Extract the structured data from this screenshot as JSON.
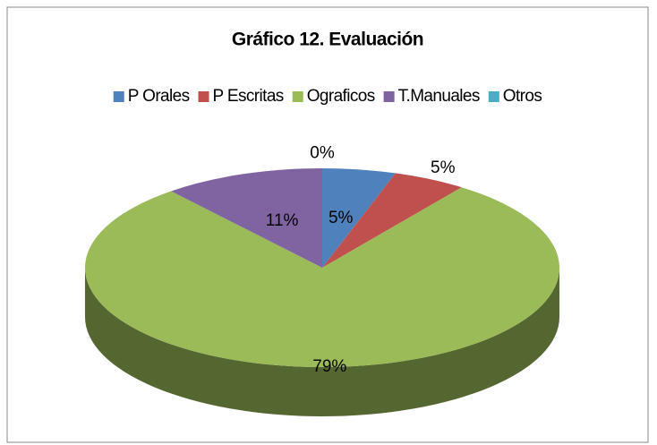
{
  "chart_data": {
    "type": "pie",
    "title": "Gráfico 12. Evaluación",
    "categories": [
      "P Orales",
      "P Escritas",
      "Ograficos",
      "T.Manuales",
      "Otros"
    ],
    "values": [
      5,
      5,
      79,
      11,
      0
    ],
    "value_labels": [
      "5%",
      "5%",
      "79%",
      "11%",
      "0%"
    ],
    "colors": [
      "#4f81bd",
      "#c0504d",
      "#9bbb59",
      "#8064a2",
      "#4bacc6"
    ],
    "legend": "top",
    "three_d": true
  }
}
